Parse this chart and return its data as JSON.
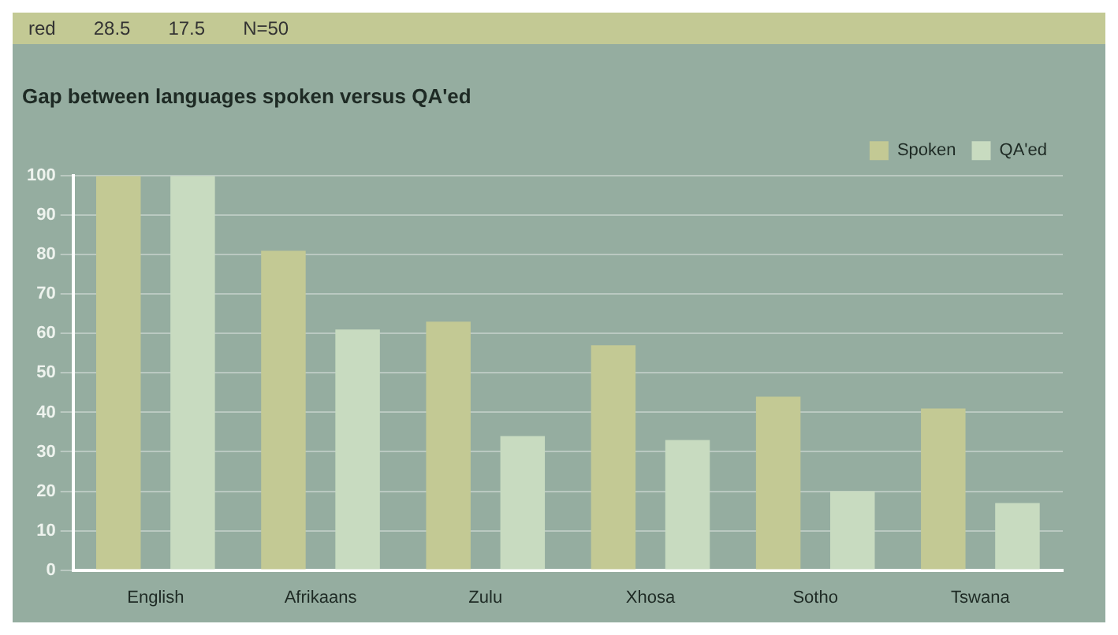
{
  "chart_data": {
    "type": "bar",
    "title": "Gap between languages spoken versus QA'ed",
    "categories": [
      "English",
      "Afrikaans",
      "Zulu",
      "Xhosa",
      "Sotho",
      "Tswana"
    ],
    "series": [
      {
        "name": "Spoken",
        "color": "#c3c994",
        "values": [
          100,
          81,
          63,
          57,
          44,
          41
        ]
      },
      {
        "name": "QA'ed",
        "color": "#c8dbc0",
        "values": [
          100,
          61,
          34,
          33,
          20,
          17
        ]
      }
    ],
    "ylim": [
      0,
      100
    ],
    "yticks": [
      0,
      10,
      20,
      30,
      40,
      50,
      60,
      70,
      80,
      90,
      100
    ],
    "grid": "y",
    "legend": "top right",
    "annotations": [
      "red",
      "28.5",
      "17.5",
      "N=50"
    ]
  }
}
